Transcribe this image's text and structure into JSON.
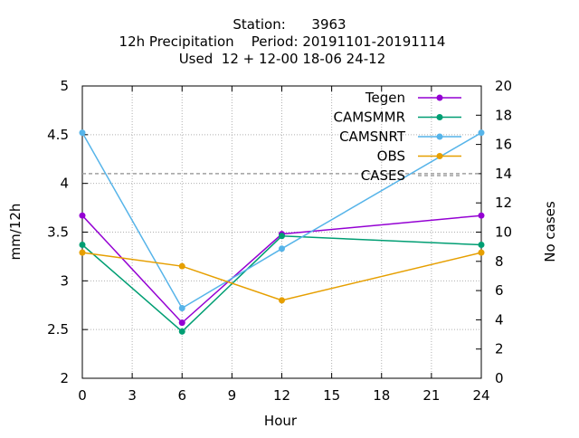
{
  "title_lines": [
    "Station:      3963",
    "12h Precipitation    Period: 20191101-20191114",
    "Used  12 + 12-00 18-06 24-12"
  ],
  "chart_data": {
    "type": "line",
    "xlabel": "Hour",
    "ylabel": "mm/12h",
    "y2label": "No cases",
    "xlim": [
      0,
      24
    ],
    "ylim": [
      2,
      5
    ],
    "y2lim": [
      0,
      20
    ],
    "xticks": [
      0,
      3,
      6,
      9,
      12,
      15,
      18,
      21,
      24
    ],
    "yticks": [
      2,
      2.5,
      3,
      3.5,
      4,
      4.5,
      5
    ],
    "y2ticks": [
      0,
      2,
      4,
      6,
      8,
      10,
      12,
      14,
      16,
      18,
      20
    ],
    "grid": true,
    "legend_position": "top-right",
    "x": [
      0,
      6,
      12,
      24
    ],
    "series": [
      {
        "name": "Tegen",
        "color": "#9400d3",
        "values": [
          3.67,
          2.57,
          3.48,
          3.67
        ]
      },
      {
        "name": "CAMSMMR",
        "color": "#009e73",
        "values": [
          3.37,
          2.48,
          3.46,
          3.37
        ]
      },
      {
        "name": "CAMSNRT",
        "color": "#56b4e9",
        "values": [
          4.52,
          2.72,
          3.33,
          4.52
        ]
      },
      {
        "name": "OBS",
        "color": "#e69f00",
        "values": [
          3.29,
          3.15,
          2.8,
          3.29
        ]
      }
    ],
    "cases": {
      "name": "CASES",
      "color": "#a0a0a0",
      "value": 14,
      "axis": "y2"
    }
  }
}
